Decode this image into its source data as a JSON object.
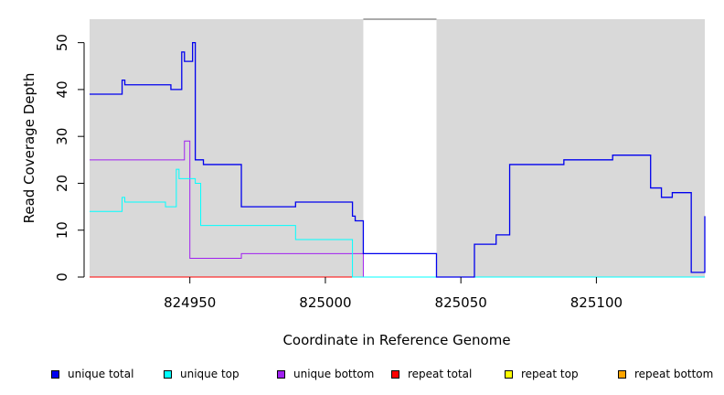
{
  "chart_data": {
    "type": "line",
    "xlabel": "Coordinate in Reference Genome",
    "ylabel": "Read Coverage Depth",
    "xlim": [
      824913,
      825140
    ],
    "ylim": [
      0,
      55
    ],
    "xticks": [
      824950,
      825000,
      825050,
      825100
    ],
    "xtick_labels": [
      "824950",
      "825000",
      "825050",
      "825100"
    ],
    "yticks": [
      0,
      10,
      20,
      30,
      40,
      50
    ],
    "ytick_labels": [
      "0",
      "10",
      "20",
      "30",
      "40",
      "50"
    ],
    "gap_region": [
      825014,
      825041
    ],
    "series": [
      {
        "name": "unique total",
        "color": "#0000ee",
        "x": [
          824913,
          824925,
          824926,
          824943,
          824947,
          824948,
          824951,
          824952,
          824955,
          824969,
          824989,
          825010,
          825011,
          825014,
          825041,
          825055,
          825063,
          825068,
          825088,
          825106,
          825120,
          825124,
          825128,
          825135,
          825140
        ],
        "y": [
          39,
          42,
          41,
          40,
          48,
          46,
          50,
          25,
          24,
          15,
          16,
          13,
          12,
          5,
          0,
          7,
          9,
          24,
          25,
          26,
          19,
          17,
          18,
          1,
          13
        ]
      },
      {
        "name": "unique top",
        "color": "#00ffff",
        "x": [
          824913,
          824925,
          824926,
          824941,
          824945,
          824946,
          824948,
          824952,
          824954,
          824989,
          825010,
          825041,
          825140
        ],
        "y": [
          14,
          17,
          16,
          15,
          23,
          21,
          21,
          20,
          11,
          8,
          0,
          0,
          0
        ]
      },
      {
        "name": "unique bottom",
        "color": "#a020f0",
        "x": [
          824913,
          824948,
          824950,
          824969,
          825014,
          825041,
          825140
        ],
        "y": [
          25,
          29,
          4,
          5,
          0,
          0,
          0
        ]
      },
      {
        "name": "repeat total",
        "color": "#ff0000",
        "x": [
          824913,
          825014
        ],
        "y": [
          0,
          0
        ]
      },
      {
        "name": "repeat top",
        "color": "#ffff00",
        "x": [
          824913,
          825014
        ],
        "y": [
          0,
          0
        ]
      },
      {
        "name": "repeat bottom",
        "color": "#ffa500",
        "x": [
          824913,
          825014
        ],
        "y": [
          0,
          0
        ]
      }
    ],
    "plot_background": "#d9d9d9",
    "grid": false,
    "legend_position": "bottom"
  }
}
